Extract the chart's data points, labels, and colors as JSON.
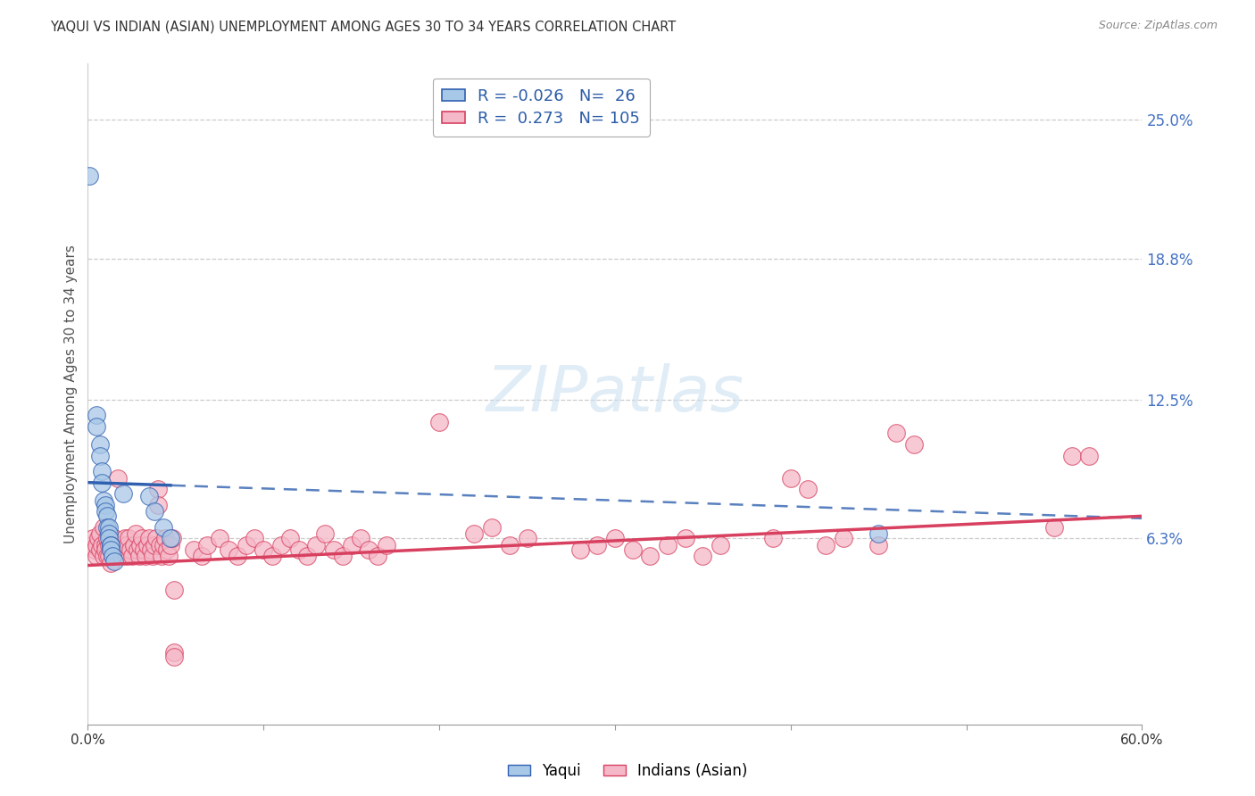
{
  "title": "YAQUI VS INDIAN (ASIAN) UNEMPLOYMENT AMONG AGES 30 TO 34 YEARS CORRELATION CHART",
  "source": "Source: ZipAtlas.com",
  "ylabel_label": "Unemployment Among Ages 30 to 34 years",
  "legend_blue_label": "Yaqui",
  "legend_pink_label": "Indians (Asian)",
  "R_blue": -0.026,
  "N_blue": 26,
  "R_pink": 0.273,
  "N_pink": 105,
  "xlim": [
    0.0,
    0.6
  ],
  "ylim": [
    -0.02,
    0.275
  ],
  "yticks": [
    0.063,
    0.125,
    0.188,
    0.25
  ],
  "ytick_labels": [
    "6.3%",
    "12.5%",
    "18.8%",
    "25.0%"
  ],
  "xticks": [
    0.0,
    0.1,
    0.2,
    0.3,
    0.4,
    0.5,
    0.6
  ],
  "xtick_labels": [
    "0.0%",
    "",
    "",
    "",
    "",
    "",
    "60.0%"
  ],
  "color_blue": "#a8c8e8",
  "color_pink": "#f5b8c8",
  "trendline_blue": "#3060b0",
  "trendline_pink": "#d84060",
  "background": "#ffffff",
  "trendline_blue_x0": 0.0,
  "trendline_blue_y0": 0.088,
  "trendline_blue_x1": 0.6,
  "trendline_blue_y1": 0.072,
  "trendline_blue_solid_end": 0.048,
  "trendline_pink_x0": 0.0,
  "trendline_pink_y0": 0.051,
  "trendline_pink_x1": 0.6,
  "trendline_pink_y1": 0.073,
  "blue_points": [
    [
      0.001,
      0.225
    ],
    [
      0.005,
      0.118
    ],
    [
      0.005,
      0.113
    ],
    [
      0.007,
      0.105
    ],
    [
      0.007,
      0.1
    ],
    [
      0.008,
      0.093
    ],
    [
      0.008,
      0.088
    ],
    [
      0.009,
      0.08
    ],
    [
      0.01,
      0.078
    ],
    [
      0.01,
      0.075
    ],
    [
      0.011,
      0.073
    ],
    [
      0.011,
      0.068
    ],
    [
      0.012,
      0.068
    ],
    [
      0.012,
      0.065
    ],
    [
      0.012,
      0.063
    ],
    [
      0.013,
      0.06
    ],
    [
      0.013,
      0.06
    ],
    [
      0.013,
      0.058
    ],
    [
      0.014,
      0.055
    ],
    [
      0.015,
      0.053
    ],
    [
      0.02,
      0.083
    ],
    [
      0.035,
      0.082
    ],
    [
      0.038,
      0.075
    ],
    [
      0.043,
      0.068
    ],
    [
      0.047,
      0.063
    ],
    [
      0.45,
      0.065
    ]
  ],
  "pink_points": [
    [
      0.002,
      0.06
    ],
    [
      0.003,
      0.063
    ],
    [
      0.004,
      0.058
    ],
    [
      0.005,
      0.055
    ],
    [
      0.005,
      0.06
    ],
    [
      0.006,
      0.063
    ],
    [
      0.007,
      0.065
    ],
    [
      0.007,
      0.058
    ],
    [
      0.008,
      0.06
    ],
    [
      0.009,
      0.055
    ],
    [
      0.009,
      0.068
    ],
    [
      0.01,
      0.06
    ],
    [
      0.01,
      0.058
    ],
    [
      0.011,
      0.055
    ],
    [
      0.011,
      0.063
    ],
    [
      0.012,
      0.06
    ],
    [
      0.012,
      0.055
    ],
    [
      0.013,
      0.058
    ],
    [
      0.013,
      0.052
    ],
    [
      0.014,
      0.06
    ],
    [
      0.015,
      0.055
    ],
    [
      0.015,
      0.063
    ],
    [
      0.016,
      0.058
    ],
    [
      0.017,
      0.09
    ],
    [
      0.018,
      0.06
    ],
    [
      0.019,
      0.055
    ],
    [
      0.02,
      0.058
    ],
    [
      0.021,
      0.063
    ],
    [
      0.022,
      0.055
    ],
    [
      0.022,
      0.06
    ],
    [
      0.023,
      0.063
    ],
    [
      0.024,
      0.058
    ],
    [
      0.025,
      0.055
    ],
    [
      0.026,
      0.06
    ],
    [
      0.027,
      0.065
    ],
    [
      0.028,
      0.058
    ],
    [
      0.029,
      0.055
    ],
    [
      0.03,
      0.06
    ],
    [
      0.031,
      0.063
    ],
    [
      0.032,
      0.058
    ],
    [
      0.033,
      0.055
    ],
    [
      0.034,
      0.06
    ],
    [
      0.035,
      0.063
    ],
    [
      0.036,
      0.058
    ],
    [
      0.037,
      0.055
    ],
    [
      0.038,
      0.06
    ],
    [
      0.039,
      0.063
    ],
    [
      0.04,
      0.085
    ],
    [
      0.04,
      0.078
    ],
    [
      0.041,
      0.06
    ],
    [
      0.042,
      0.055
    ],
    [
      0.043,
      0.06
    ],
    [
      0.044,
      0.063
    ],
    [
      0.045,
      0.058
    ],
    [
      0.046,
      0.055
    ],
    [
      0.047,
      0.06
    ],
    [
      0.048,
      0.063
    ],
    [
      0.049,
      0.04
    ],
    [
      0.049,
      0.012
    ],
    [
      0.049,
      0.01
    ],
    [
      0.06,
      0.058
    ],
    [
      0.065,
      0.055
    ],
    [
      0.068,
      0.06
    ],
    [
      0.075,
      0.063
    ],
    [
      0.08,
      0.058
    ],
    [
      0.085,
      0.055
    ],
    [
      0.09,
      0.06
    ],
    [
      0.095,
      0.063
    ],
    [
      0.1,
      0.058
    ],
    [
      0.105,
      0.055
    ],
    [
      0.11,
      0.06
    ],
    [
      0.115,
      0.063
    ],
    [
      0.12,
      0.058
    ],
    [
      0.125,
      0.055
    ],
    [
      0.13,
      0.06
    ],
    [
      0.135,
      0.065
    ],
    [
      0.14,
      0.058
    ],
    [
      0.145,
      0.055
    ],
    [
      0.15,
      0.06
    ],
    [
      0.155,
      0.063
    ],
    [
      0.16,
      0.058
    ],
    [
      0.165,
      0.055
    ],
    [
      0.17,
      0.06
    ],
    [
      0.2,
      0.115
    ],
    [
      0.22,
      0.065
    ],
    [
      0.23,
      0.068
    ],
    [
      0.24,
      0.06
    ],
    [
      0.25,
      0.063
    ],
    [
      0.28,
      0.058
    ],
    [
      0.29,
      0.06
    ],
    [
      0.3,
      0.063
    ],
    [
      0.31,
      0.058
    ],
    [
      0.32,
      0.055
    ],
    [
      0.33,
      0.06
    ],
    [
      0.34,
      0.063
    ],
    [
      0.35,
      0.055
    ],
    [
      0.36,
      0.06
    ],
    [
      0.39,
      0.063
    ],
    [
      0.4,
      0.09
    ],
    [
      0.41,
      0.085
    ],
    [
      0.42,
      0.06
    ],
    [
      0.43,
      0.063
    ],
    [
      0.45,
      0.06
    ],
    [
      0.46,
      0.11
    ],
    [
      0.47,
      0.105
    ],
    [
      0.55,
      0.068
    ],
    [
      0.56,
      0.1
    ],
    [
      0.57,
      0.1
    ]
  ]
}
